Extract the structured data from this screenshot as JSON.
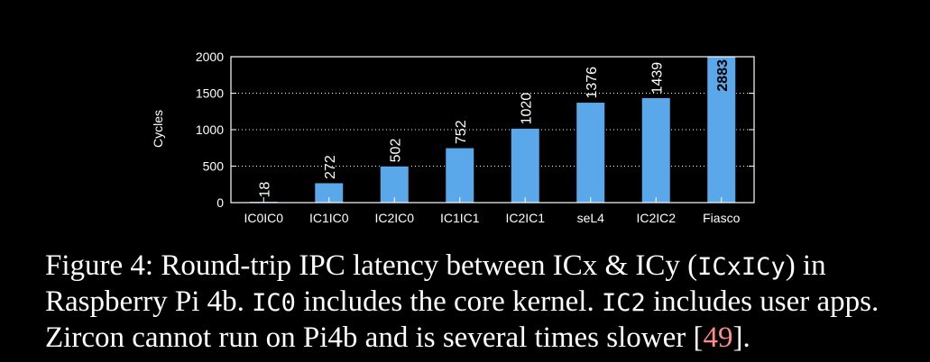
{
  "chart_data": {
    "type": "bar",
    "categories": [
      "IC0IC0",
      "IC1IC0",
      "IC2IC0",
      "IC1IC1",
      "IC2IC1",
      "seL4",
      "IC2IC2",
      "Fiasco"
    ],
    "values": [
      18,
      272,
      502,
      752,
      1020,
      1376,
      1439,
      2883
    ],
    "value_labels": [
      "18",
      "272",
      "502",
      "752",
      "1020",
      "1376",
      "1439",
      "2883"
    ],
    "ylabel": "Cycles",
    "xlabel": "",
    "ylim": [
      0,
      2000
    ],
    "yticks": [
      "0",
      "500",
      "1000",
      "1500",
      "2000"
    ],
    "grid": true,
    "bar_color": "#5aa8ea",
    "clipped_bar_label_color": "#000000"
  },
  "caption": {
    "part1": "Figure 4: Round-trip IPC latency between ICx & ICy (",
    "code1": "ICxICy",
    "part2": ") in Raspberry Pi 4b. ",
    "code2": "IC0",
    "part3": " includes the core kernel. ",
    "code3": "IC2",
    "part4": " includes user apps. Zircon cannot run on Pi4b and is several times slower [",
    "ref": "49",
    "part5": "]."
  }
}
